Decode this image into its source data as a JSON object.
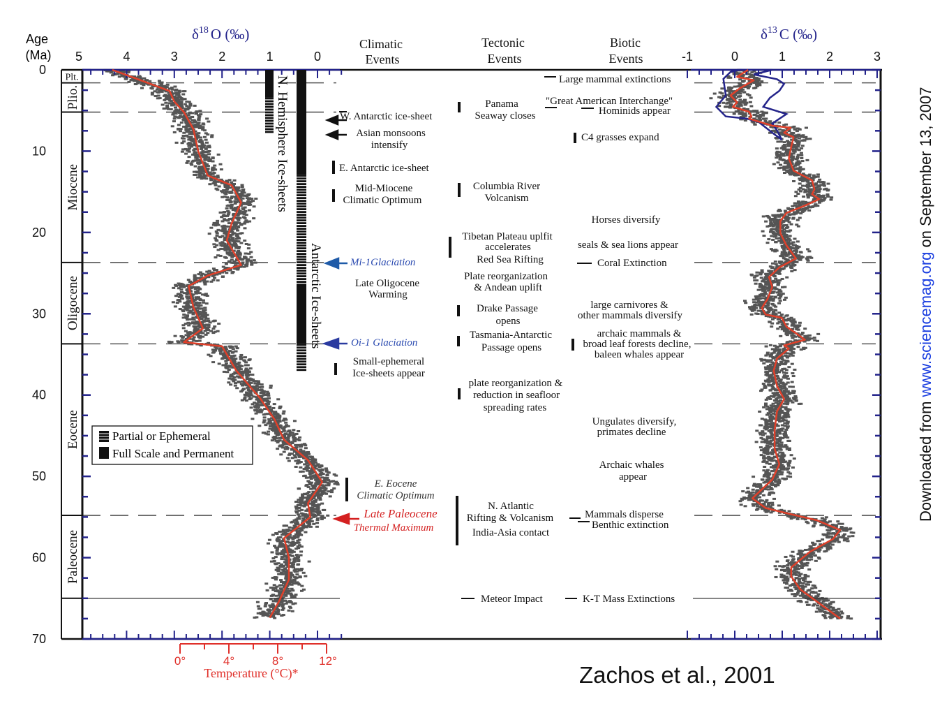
{
  "chart_data": [
    {
      "type": "line",
      "title": "δ18O (‰)",
      "title_parts": {
        "delta": "δ",
        "sup": "18",
        "rest": "O (‰)"
      },
      "xlabel": "δ18O (‰)",
      "ylabel": "Age (Ma)",
      "ylabel_parts": [
        "Age",
        "(Ma)"
      ],
      "xlim": [
        5,
        -0.5
      ],
      "ylim": [
        0,
        70
      ],
      "xticks": [
        "5",
        "4",
        "3",
        "2",
        "1",
        "0"
      ],
      "yticks": [
        "0",
        "10",
        "20",
        "30",
        "40",
        "50",
        "60",
        "70"
      ],
      "scatter_color": "#555555",
      "series": [
        {
          "name": "smoothed",
          "color": "#e0402a",
          "age": [
            0,
            1.3,
            2.6,
            3.9,
            5.2,
            7.3,
            10,
            13,
            14.2,
            16.3,
            18.9,
            21,
            24,
            25.3,
            26.6,
            29.2,
            31.8,
            33.5,
            34,
            37,
            40.4,
            43,
            45.5,
            48,
            50.7,
            53.3,
            55,
            57.6,
            60,
            62.7,
            65.3,
            67.4
          ],
          "value": [
            4.3,
            3.7,
            3.1,
            3.0,
            2.8,
            2.6,
            2.5,
            2.3,
            1.8,
            1.6,
            1.8,
            1.9,
            1.6,
            2.3,
            2.7,
            2.6,
            2.4,
            2.8,
            2.0,
            1.7,
            1.2,
            0.9,
            0.7,
            0.2,
            -0.1,
            0.2,
            0.15,
            0.7,
            0.6,
            0.6,
            0.8,
            1.0
          ],
          "scatter_spread": 0.3
        }
      ],
      "temperature_axis": {
        "label": "Temperature (°C)*",
        "ticks": [
          "0°",
          "4°",
          "8°",
          "12°"
        ],
        "color": "#e0302a"
      }
    },
    {
      "type": "line",
      "title": "δ13C (‰)",
      "title_parts": {
        "delta": "δ",
        "sup": "13",
        "rest": "C (‰)"
      },
      "xlabel": "δ13C (‰)",
      "xlim": [
        -1,
        3
      ],
      "ylim": [
        0,
        70
      ],
      "xticks": [
        "-1",
        "0",
        "1",
        "2",
        "3"
      ],
      "series": [
        {
          "name": "smoothed",
          "color": "#e0402a",
          "age": [
            0,
            0.86,
            1.29,
            2.29,
            3.15,
            4.0,
            4.55,
            5.15,
            5.73,
            6.0,
            6.87,
            7.13,
            7.73,
            8.3,
            9.45,
            10.9,
            12.4,
            13.6,
            14.7,
            15.3,
            15.9,
            16.7,
            17.6,
            18.6,
            20.1,
            21.6,
            23.2,
            24.3,
            25.5,
            26.7,
            28.2,
            29.3,
            30.1,
            30.5,
            31.6,
            32.4,
            33.2,
            33.9,
            34.3,
            35.5,
            37.0,
            38.9,
            40.5,
            42.0,
            44.3,
            46.6,
            48.5,
            50.4,
            52.7,
            53.9,
            54.6,
            55.4,
            56.6,
            57.7,
            59.3,
            61.2,
            62.3,
            63.9,
            65.4,
            67.5
          ],
          "value": [
            0.28,
            0.05,
            0.4,
            0.1,
            -0.09,
            0.05,
            -0.04,
            0.3,
            0.35,
            0.3,
            0.79,
            1.18,
            1.04,
            1.24,
            1.19,
            1.14,
            1.24,
            1.63,
            1.68,
            1.63,
            1.78,
            1.48,
            1.09,
            0.96,
            0.96,
            1.09,
            1.29,
            0.94,
            0.72,
            0.79,
            0.69,
            0.57,
            0.65,
            0.99,
            1.09,
            1.29,
            1.48,
            1.04,
            1.14,
            0.89,
            0.82,
            0.89,
            1.04,
            0.89,
            0.84,
            0.84,
            0.94,
            0.79,
            0.37,
            0.65,
            1.14,
            1.73,
            2.22,
            2.07,
            1.58,
            1.19,
            1.19,
            1.38,
            1.73,
            2.22
          ],
          "scatter_spread": 0.3
        },
        {
          "name": "envelope_0_10Ma",
          "color": "#24248a",
          "upper_age": [
            0,
            0.57,
            1.15,
            1.72,
            2.58,
            3.44,
            4.55,
            5.44,
            6.6,
            7.45,
            8.6
          ],
          "upper_value": [
            0.79,
            0.4,
            0.89,
            1.04,
            0.94,
            0.74,
            0.6,
            1.09,
            0.79,
            0.89,
            0.99
          ],
          "lower_age": [
            8.6,
            7.73,
            6.4,
            6.0,
            5.73,
            4.55,
            3.15,
            1.12,
            0.26,
            0
          ],
          "lower_value": [
            0.99,
            0.79,
            0.5,
            0.25,
            -0.19,
            -0.39,
            -0.19,
            -0.24,
            -0.09,
            0.1
          ]
        }
      ]
    }
  ],
  "epochs": [
    {
      "name": "Plt.",
      "start": 0,
      "end": 1.6
    },
    {
      "name": "Plio.",
      "start": 1.6,
      "end": 5.2
    },
    {
      "name": "Miocene",
      "start": 5.2,
      "end": 23.7
    },
    {
      "name": "Oligocene",
      "start": 23.7,
      "end": 33.7
    },
    {
      "name": "Eocene",
      "start": 33.7,
      "end": 54.8
    },
    {
      "name": "Paleocene",
      "start": 54.8,
      "end": 65
    }
  ],
  "ice_sheets": {
    "northern": {
      "label": "N. Hemisphere Ice-sheets",
      "full": [
        [
          0,
          3.4
        ]
      ],
      "partial": [
        [
          3.4,
          7.7
        ]
      ]
    },
    "antarctic": {
      "label": "Antarctic Ice-sheets",
      "full": [
        [
          0,
          12.9
        ],
        [
          26.5,
          33.7
        ]
      ],
      "partial": [
        [
          12.9,
          26.5
        ],
        [
          33.7,
          37
        ]
      ]
    }
  },
  "legend": {
    "partial": "Partial or Ephemeral",
    "full": "Full Scale and Permanent"
  },
  "columns": {
    "climatic": [
      "Climatic",
      "Events"
    ],
    "tectonic": [
      "Tectonic",
      "Events"
    ],
    "biotic": [
      "Biotic",
      "Events"
    ]
  },
  "climatic_events": {
    "w_antarctic": "W. Antarctic ice-sheet",
    "asian_1": "Asian monsoons",
    "asian_2": "intensify",
    "e_antarctic": "E. Antarctic ice-sheet",
    "mmco_1": "Mid-Miocene",
    "mmco_2": "Climatic Optimum",
    "mi1": "Mi-1Glaciation",
    "lo_1": "Late Oligocene",
    "lo_2": "Warming",
    "oi1": "Oi-1 Glaciation",
    "se_1": "Small-ephemeral",
    "se_2": "Ice-sheets appear",
    "eeco_1": "E. Eocene",
    "eeco_2": "Climatic Optimum",
    "petm_1": "Late Paleocene",
    "petm_2": "Thermal Maximum"
  },
  "tectonic_events": {
    "panama_1": "Panama",
    "panama_2": "Seaway closes",
    "columbia_1": "Columbia River",
    "columbia_2": "Volcanism",
    "tibet_1": "Tibetan Plateau uplfit",
    "tibet_2": "accelerates",
    "redsea": "Red Sea Rifting",
    "andean_1": "Plate reorganization",
    "andean_2": "& Andean uplift",
    "drake_1": "Drake Passage",
    "drake_2": "opens",
    "tasman_1": "Tasmania-Antarctic",
    "tasman_2": "Passage opens",
    "plate_1": "plate reorganization &",
    "plate_2": "reduction in seafloor",
    "plate_3": "spreading rates",
    "natl_1": "N. Atlantic",
    "natl_2": "Rifting & Volcanism",
    "natl_3": "India-Asia contact",
    "meteor": "Meteor Impact"
  },
  "biotic_events": {
    "large_mammal": "Large mammal extinctions",
    "gai": "\"Great American Interchange\"",
    "hominids": "Hominids appear",
    "c4": "C4 grasses expand",
    "horses": "Horses diversify",
    "seals": "seals & sea lions appear",
    "coral": "Coral Extinction",
    "carn_1": "large carnivores &",
    "carn_2": "other mammals diversify",
    "archaic_1": "archaic mammals &",
    "archaic_2": "broad leaf forests decline,",
    "archaic_3": "baleen whales appear",
    "ungulates_1": "Ungulates diversify,",
    "ungulates_2": "primates decline",
    "whales_1": "Archaic whales",
    "whales_2": "appear",
    "disperse_1": "Mammals disperse",
    "disperse_2": "Benthic extinction",
    "kt": "K-T Mass Extinctions"
  },
  "side_note": {
    "prefix": "Downloaded from ",
    "link": "www.sciencemag.org",
    "suffix": " on September 13, 2007"
  },
  "citation": "Zachos et al., 2001",
  "colors": {
    "axis_blue": "#22228a",
    "glaciation_blue": "#2a4ab0",
    "petm_red": "#d42020",
    "curve_red": "#e0402a",
    "scatter": "#555555"
  }
}
